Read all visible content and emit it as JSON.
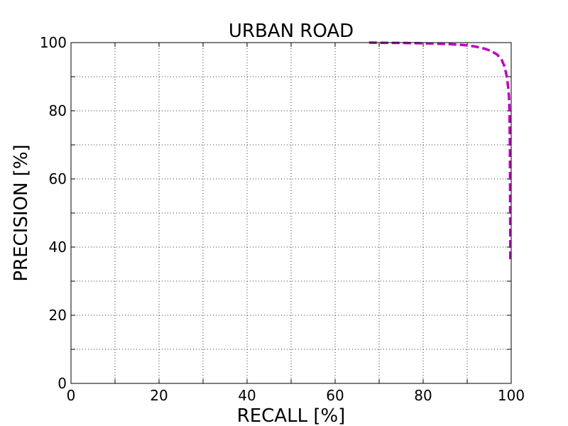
{
  "chart_data": {
    "type": "line",
    "title": "URBAN ROAD",
    "xlabel": "RECALL [%]",
    "ylabel": "PRECISION [%]",
    "xlim": [
      0,
      100
    ],
    "ylim": [
      0,
      100
    ],
    "x_ticks": [
      0,
      20,
      40,
      60,
      80,
      100
    ],
    "y_ticks": [
      0,
      20,
      40,
      60,
      80,
      100
    ],
    "x_tick_labels": [
      "0",
      "20",
      "40",
      "60",
      "80",
      "100"
    ],
    "y_tick_labels": [
      "0",
      "20",
      "40",
      "60",
      "80",
      "100"
    ],
    "grid": true,
    "grid_step": 10,
    "series": [
      {
        "color": "#bf00bf",
        "line_style": "dashed",
        "x": [
          67.7,
          70,
          75,
          80,
          85,
          88,
          90,
          92,
          94,
          95.5,
          96.8,
          97.8,
          98.5,
          99,
          99.3,
          99.5,
          99.6,
          99.7,
          99.75,
          99.8
        ],
        "y": [
          100,
          99.95,
          99.9,
          99.8,
          99.6,
          99.4,
          99.2,
          98.8,
          98.2,
          97.5,
          96.5,
          95,
          93,
          90,
          87,
          84,
          80,
          70,
          55,
          35.5
        ]
      }
    ]
  }
}
